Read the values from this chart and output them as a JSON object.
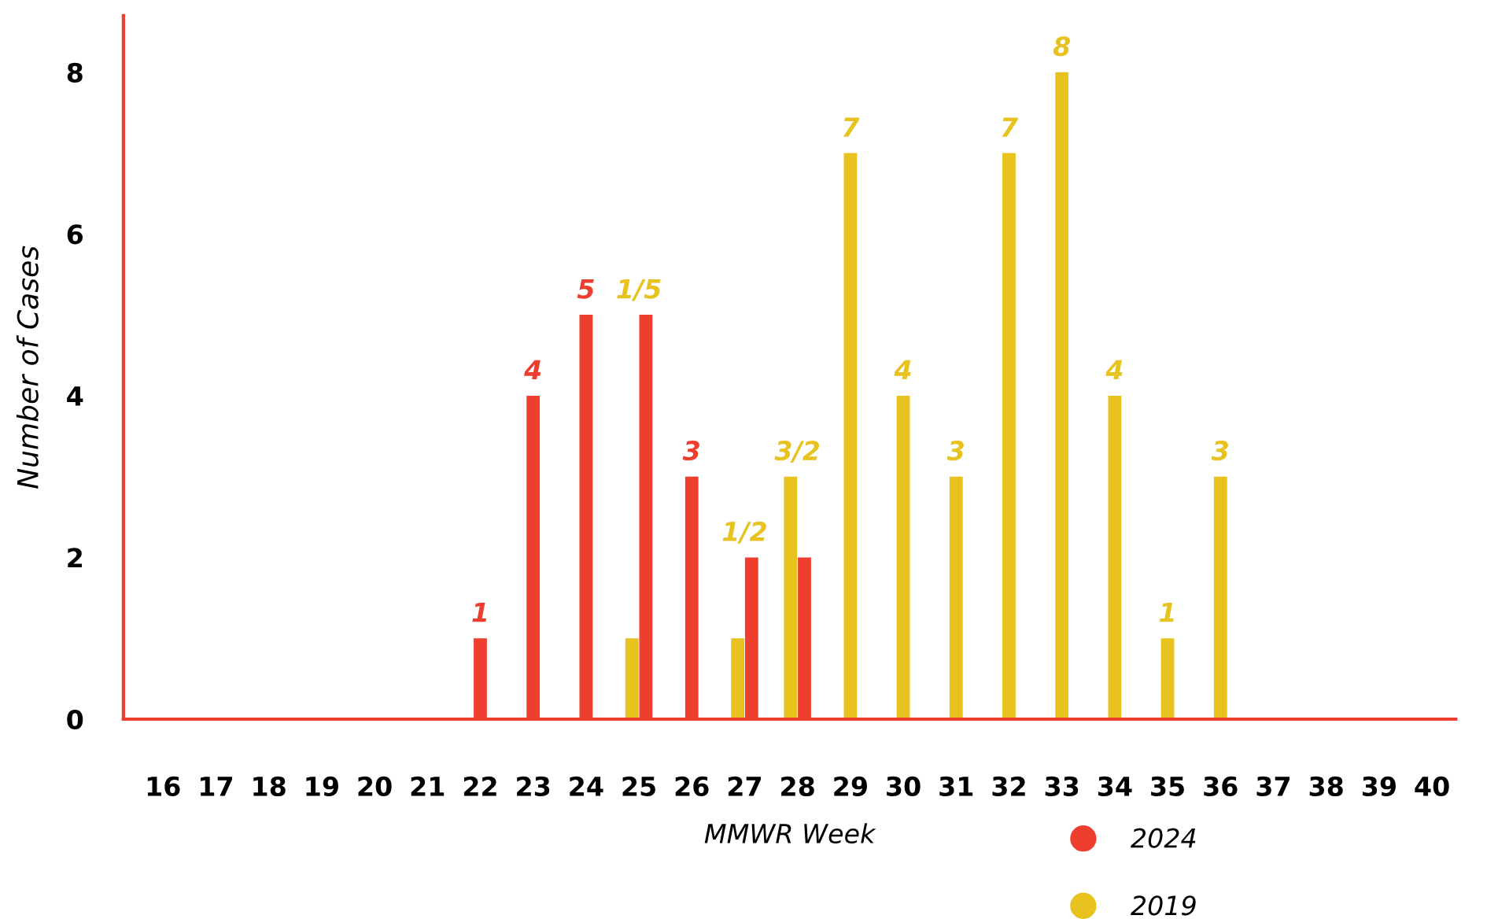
{
  "chart_data": {
    "type": "bar",
    "xlabel": "MMWR Week",
    "ylabel": "Number of Cases",
    "categories": [
      "16",
      "17",
      "18",
      "19",
      "20",
      "21",
      "22",
      "23",
      "24",
      "25",
      "26",
      "27",
      "28",
      "29",
      "30",
      "31",
      "32",
      "33",
      "34",
      "35",
      "36",
      "37",
      "38",
      "39",
      "40"
    ],
    "series": [
      {
        "name": "2024",
        "color": "#ee3e2f",
        "values": [
          null,
          null,
          null,
          null,
          null,
          null,
          1,
          4,
          5,
          5,
          3,
          2,
          2,
          null,
          null,
          null,
          null,
          null,
          null,
          null,
          null,
          null,
          null,
          null,
          null
        ],
        "value_labels": [
          null,
          null,
          null,
          null,
          null,
          null,
          "1",
          "4",
          "5",
          null,
          "3",
          null,
          null,
          null,
          null,
          null,
          null,
          null,
          null,
          null,
          null,
          null,
          null,
          null,
          null
        ]
      },
      {
        "name": "2019",
        "color": "#e8c21f",
        "values": [
          null,
          null,
          null,
          null,
          null,
          null,
          null,
          null,
          null,
          1,
          null,
          1,
          3,
          7,
          4,
          3,
          7,
          8,
          4,
          1,
          3,
          null,
          null,
          null,
          null
        ],
        "value_labels": [
          null,
          null,
          null,
          null,
          null,
          null,
          null,
          null,
          null,
          null,
          null,
          null,
          null,
          "7",
          "4",
          "3",
          "7",
          "8",
          "4",
          "1",
          "3",
          null,
          null,
          null,
          null
        ]
      }
    ],
    "ylim": [
      0,
      8.7
    ],
    "yticks": [
      0,
      2,
      4,
      6,
      8
    ],
    "annotations": [
      {
        "text": "1/5",
        "x": "25",
        "y": 5
      },
      {
        "text": "1/2",
        "x": "27",
        "y": 2
      },
      {
        "text": "3/2",
        "x": "28",
        "y": 3
      }
    ],
    "grid": false,
    "legend": "bottom right"
  }
}
